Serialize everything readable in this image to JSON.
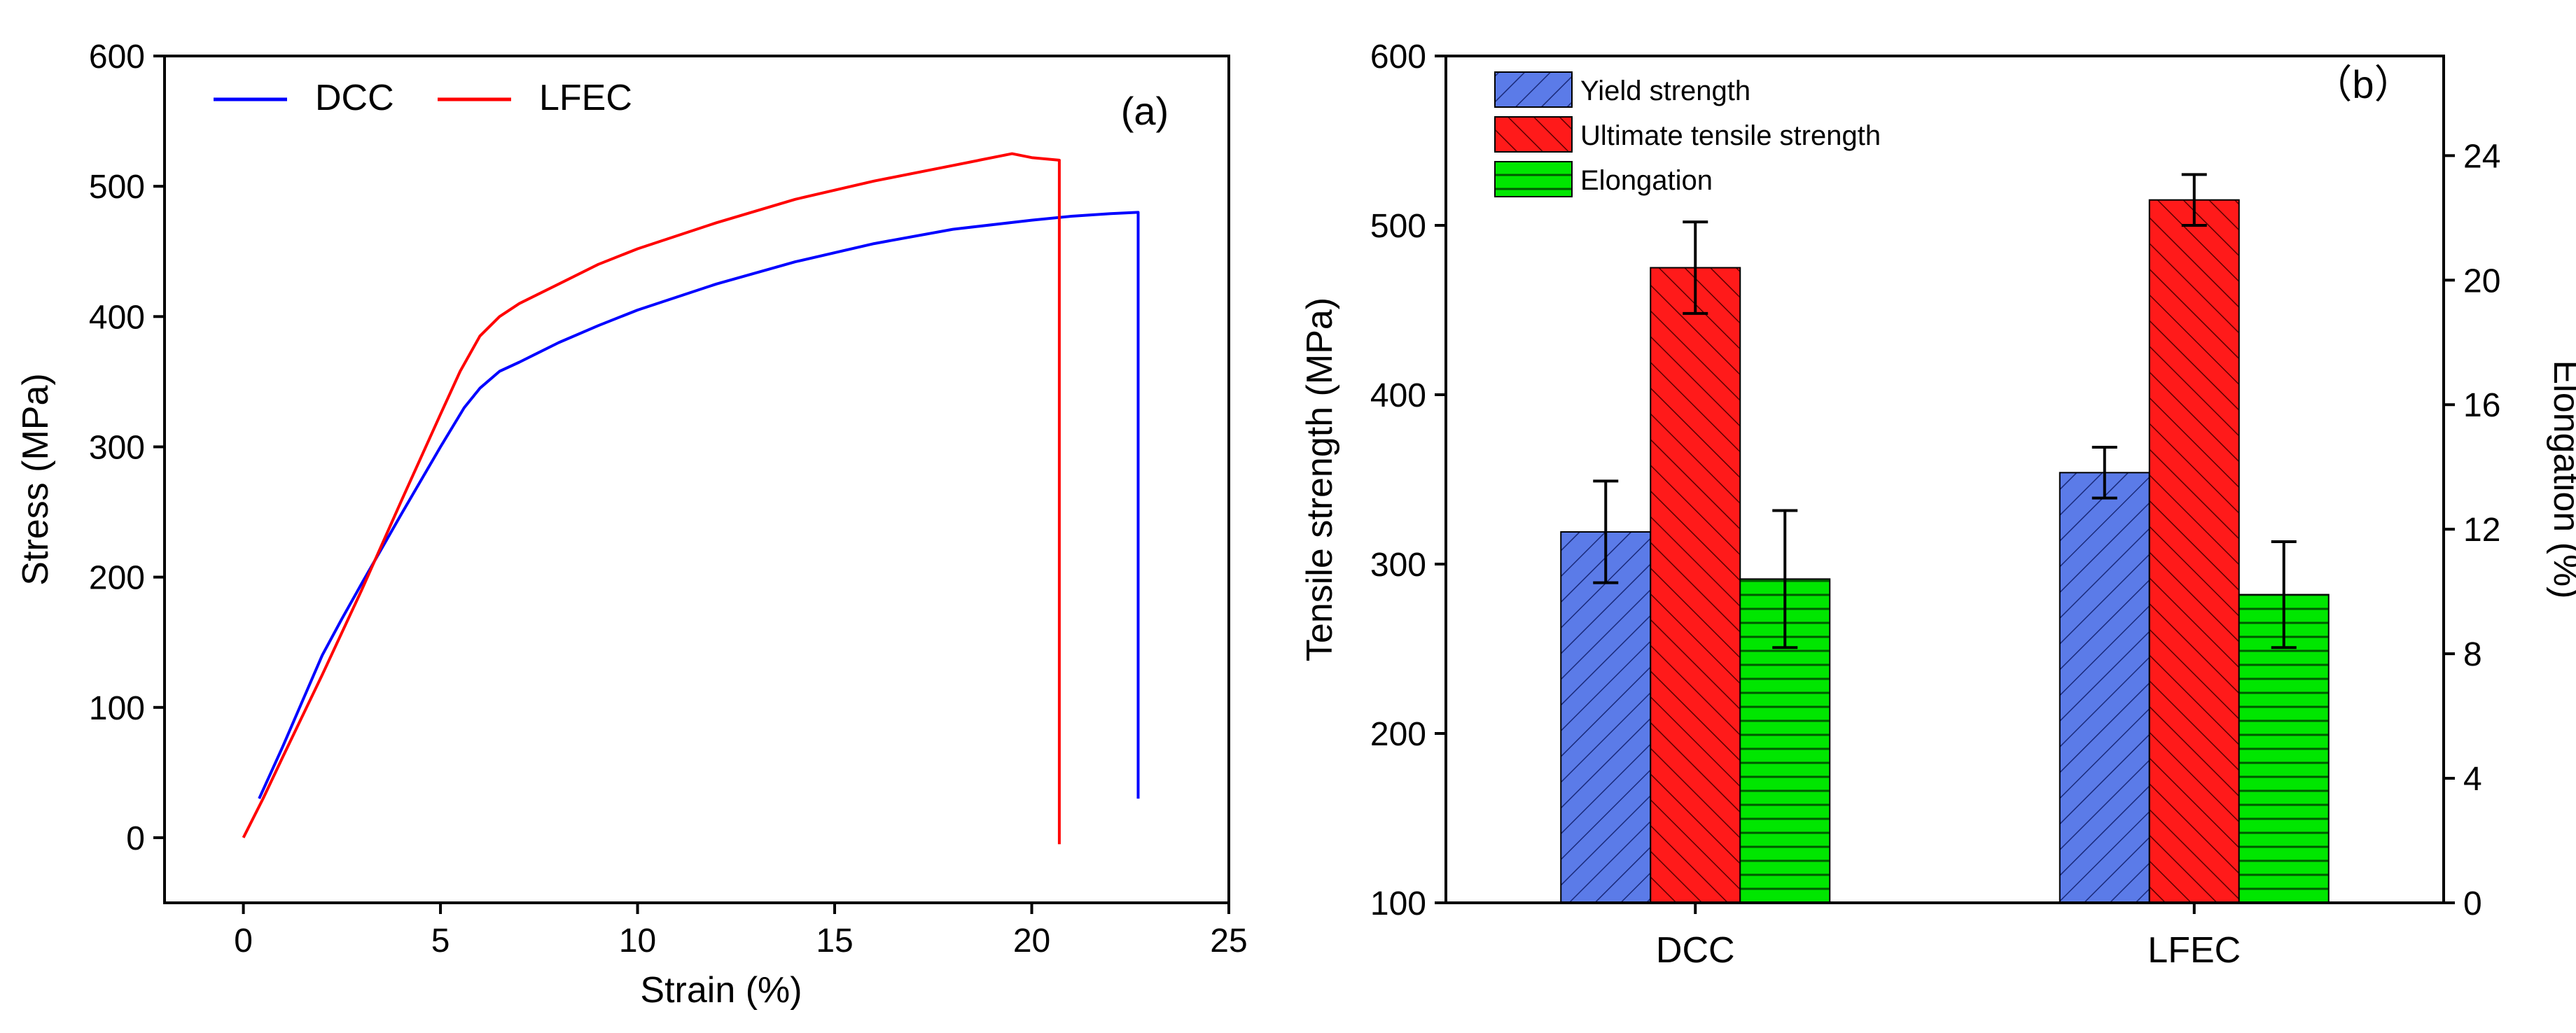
{
  "chart_data": [
    {
      "type": "line",
      "panel_label": "(a)",
      "title": "",
      "xlabel": "Strain (%)",
      "ylabel": "Stress (MPa)",
      "xlim": [
        -2,
        25
      ],
      "ylim": [
        -50,
        600
      ],
      "xticks": [
        0,
        5,
        10,
        15,
        20,
        25
      ],
      "yticks": [
        0,
        100,
        200,
        300,
        400,
        500,
        600
      ],
      "legend_position": "top-left",
      "series": [
        {
          "name": "DCC",
          "color": "#0000ff",
          "x": [
            0.4,
            1.0,
            1.5,
            2.0,
            2.5,
            3.0,
            4.0,
            5.0,
            5.6,
            6.0,
            6.5,
            7.0,
            8.0,
            9.0,
            10.0,
            12.0,
            14.0,
            16.0,
            18.0,
            20.0,
            21.0,
            22.0,
            22.7,
            22.7
          ],
          "y": [
            30,
            70,
            105,
            140,
            168,
            195,
            248,
            300,
            330,
            345,
            358,
            365,
            380,
            393,
            405,
            425,
            442,
            456,
            467,
            474,
            477,
            479,
            480,
            30
          ]
        },
        {
          "name": "LFEC",
          "color": "#ff0000",
          "x": [
            0.0,
            0.5,
            1.0,
            2.0,
            3.0,
            4.0,
            5.0,
            5.5,
            6.0,
            6.5,
            7.0,
            8.0,
            9.0,
            10.0,
            12.0,
            14.0,
            16.0,
            18.0,
            19.5,
            20.0,
            20.7,
            20.7
          ],
          "y": [
            0,
            30,
            62,
            125,
            190,
            258,
            325,
            358,
            385,
            400,
            410,
            425,
            440,
            452,
            472,
            490,
            504,
            516,
            525,
            522,
            520,
            -5
          ]
        }
      ]
    },
    {
      "type": "bar",
      "panel_label": "（b）",
      "title": "",
      "xlabel": "",
      "ylabel": "Tensile strength (MPa)",
      "ylabel_right": "Elongation (%)",
      "ylim": [
        100,
        600
      ],
      "ylim_right": [
        0,
        27.2
      ],
      "yticks": [
        100,
        200,
        300,
        400,
        500,
        600
      ],
      "yticks_right": [
        0,
        4,
        8,
        12,
        16,
        20,
        24
      ],
      "categories": [
        "DCC",
        "LFEC"
      ],
      "legend_position": "top-left",
      "series": [
        {
          "name": "Yield strength",
          "axis": "left",
          "color": "#5b7be8",
          "pattern": "forward-diagonal",
          "values": [
            319,
            354
          ],
          "errors": [
            30,
            15
          ]
        },
        {
          "name": "Ultimate tensile strength",
          "axis": "left",
          "color": "#ff1a1a",
          "pattern": "backward-diagonal",
          "values": [
            475,
            515
          ],
          "errors": [
            27,
            15
          ]
        },
        {
          "name": "Elongation",
          "axis": "right",
          "color": "#00e600",
          "pattern": "horizontal",
          "values": [
            10.4,
            9.9
          ],
          "errors": [
            2.2,
            1.7
          ]
        }
      ]
    }
  ]
}
